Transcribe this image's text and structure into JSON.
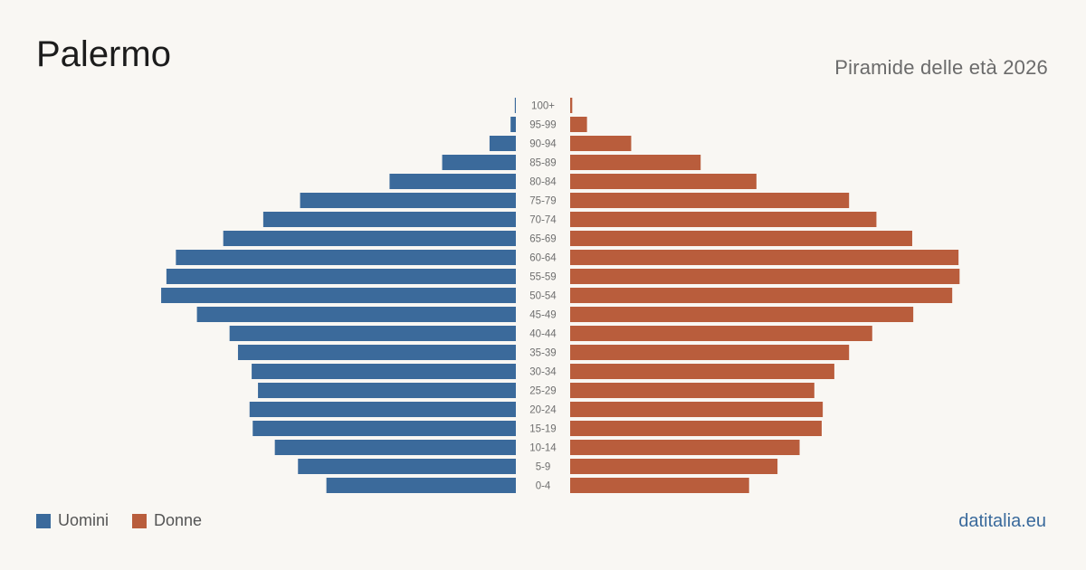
{
  "chart_data": {
    "type": "bar",
    "title": "Palermo",
    "subtitle": "Piramide delle età 2026",
    "categories": [
      "100+",
      "95-99",
      "90-94",
      "85-89",
      "80-84",
      "75-79",
      "70-74",
      "65-69",
      "60-64",
      "55-59",
      "50-54",
      "45-49",
      "40-44",
      "35-39",
      "30-34",
      "25-29",
      "20-24",
      "15-19",
      "10-14",
      "5-9",
      "0-4"
    ],
    "series": [
      {
        "name": "Uomini",
        "color": "#3b6a9b",
        "values": [
          0.1,
          0.5,
          2.5,
          7.0,
          12.0,
          20.5,
          24.0,
          27.8,
          32.3,
          33.2,
          33.7,
          30.3,
          27.2,
          26.4,
          25.1,
          24.5,
          25.3,
          25.0,
          22.9,
          20.7,
          18.0
        ]
      },
      {
        "name": "Donne",
        "color": "#b95d3c",
        "values": [
          0.2,
          1.6,
          5.8,
          12.4,
          17.7,
          26.5,
          29.1,
          32.5,
          36.9,
          37.0,
          36.3,
          32.6,
          28.7,
          26.5,
          25.1,
          23.2,
          24.0,
          23.9,
          21.8,
          19.7,
          17.0
        ]
      }
    ]
  },
  "legend": {
    "uomini": "Uomini",
    "donne": "Donne"
  },
  "source": "datitalia.eu"
}
